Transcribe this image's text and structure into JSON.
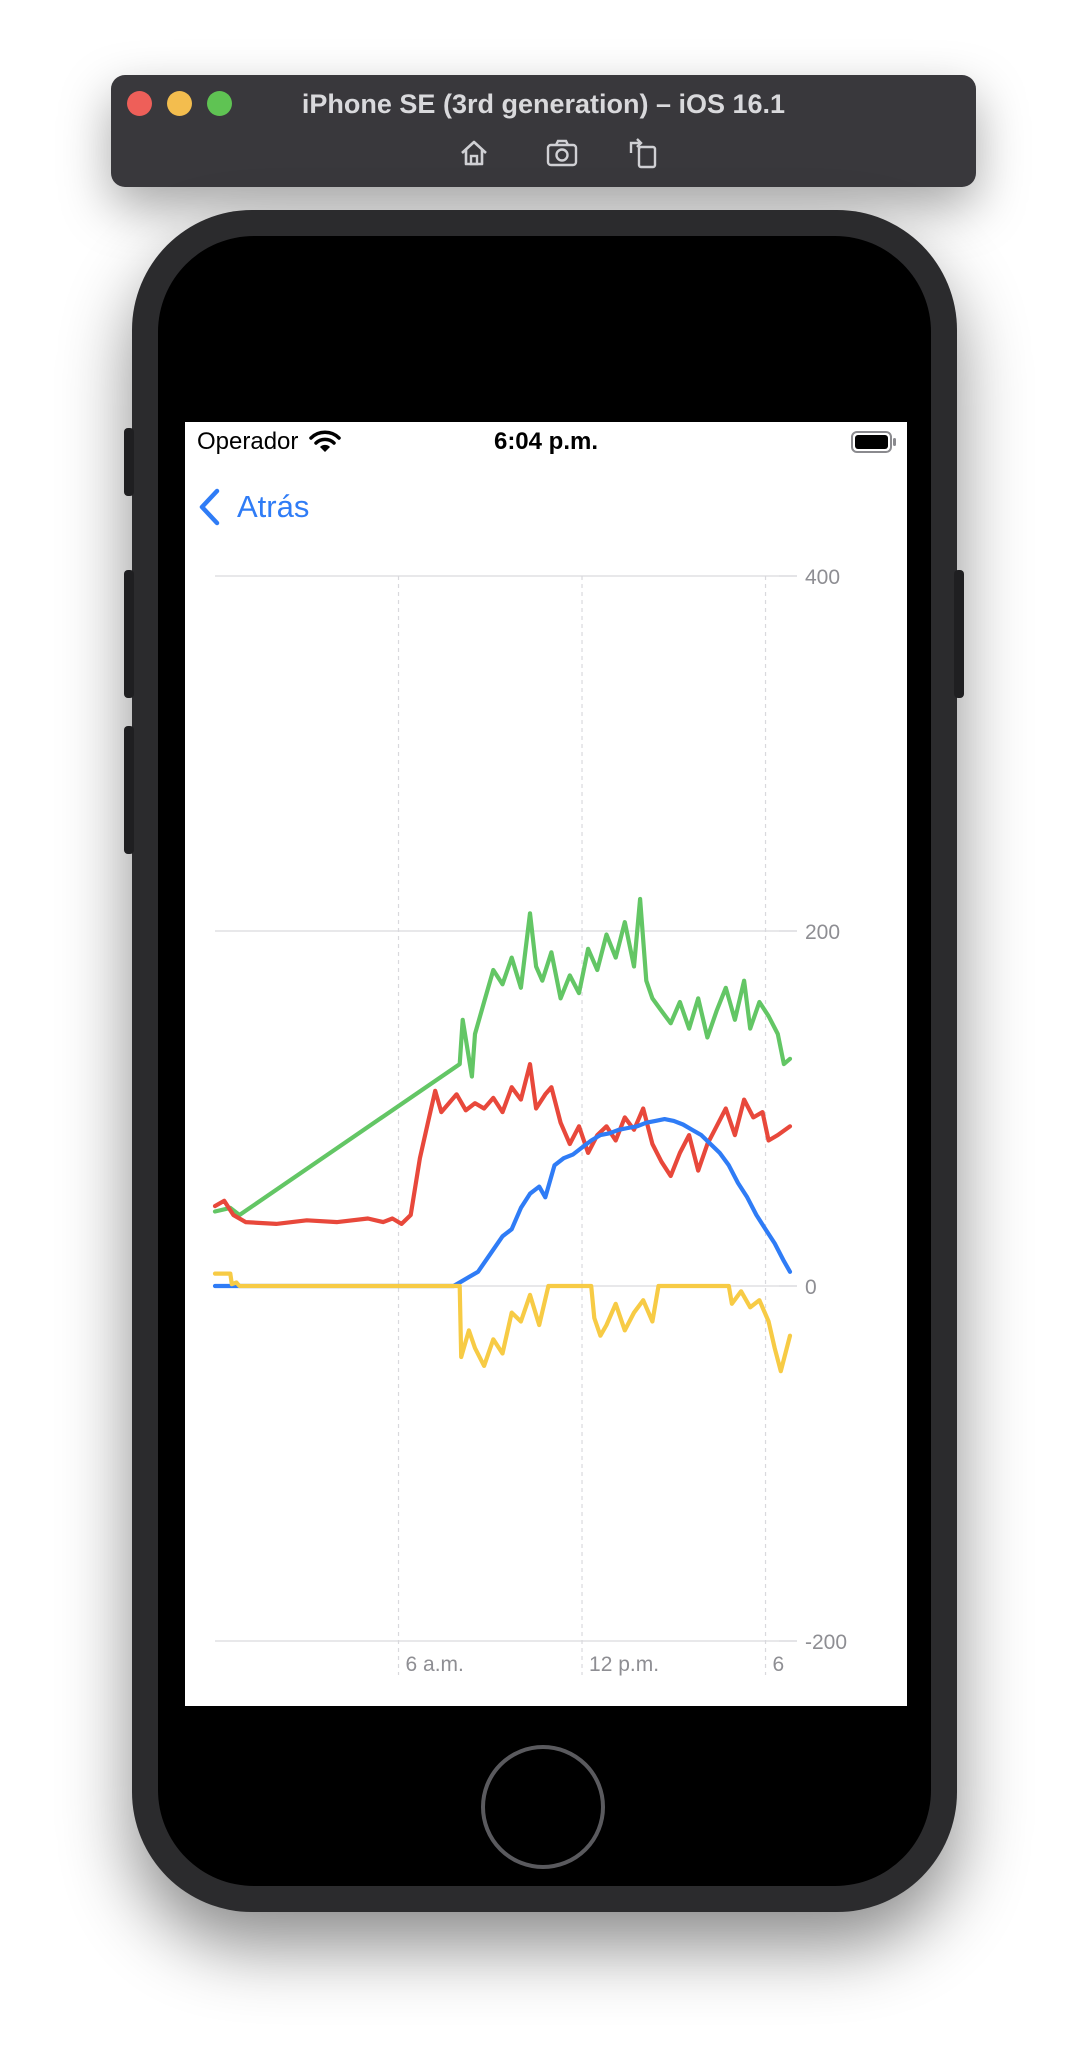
{
  "simulator": {
    "title": "iPhone SE (3rd generation) – iOS 16.1",
    "tools": [
      {
        "name": "home-icon"
      },
      {
        "name": "screenshot-icon"
      },
      {
        "name": "rotate-icon"
      }
    ]
  },
  "status_bar": {
    "carrier": "Operador",
    "time": "6:04 p.m.",
    "wifi_icon": "wifi-icon",
    "battery_icon": "battery-icon"
  },
  "nav": {
    "back_label": "Atrás",
    "back_icon": "chevron-left-icon",
    "accent_color": "#2f7cf6"
  },
  "chart_data": {
    "type": "line",
    "title": "",
    "xlabel": "",
    "ylabel": "",
    "x_unit": "hour of day",
    "xlim": [
      0,
      18.8
    ],
    "ylim": [
      -200,
      400
    ],
    "y_ticks": [
      400,
      200,
      0,
      -200
    ],
    "y_tick_labels": [
      "400",
      "200",
      "0",
      "-200"
    ],
    "x_ticks": [
      6,
      12,
      18
    ],
    "x_tick_labels": [
      "6 a.m.",
      "12 p.m.",
      "6"
    ],
    "y_axis_position": "right",
    "grid": true,
    "legend": "none",
    "series": [
      {
        "color": "#63c665",
        "x": [
          0,
          0.5,
          0.8,
          8.0,
          8.1,
          8.4,
          8.5,
          8.8,
          9.1,
          9.4,
          9.7,
          10.0,
          10.3,
          10.5,
          10.7,
          11.0,
          11.3,
          11.6,
          11.9,
          12.2,
          12.5,
          12.8,
          13.1,
          13.4,
          13.7,
          13.9,
          14.1,
          14.3,
          14.6,
          14.9,
          15.2,
          15.5,
          15.8,
          16.1,
          16.4,
          16.7,
          17.0,
          17.3,
          17.5,
          17.8,
          18.1,
          18.4,
          18.6,
          18.8
        ],
        "y": [
          42,
          44,
          40,
          125,
          150,
          118,
          142,
          160,
          178,
          170,
          185,
          168,
          210,
          180,
          172,
          188,
          162,
          175,
          165,
          190,
          178,
          198,
          185,
          205,
          180,
          218,
          172,
          162,
          155,
          148,
          160,
          145,
          162,
          140,
          155,
          168,
          150,
          172,
          145,
          160,
          152,
          142,
          125,
          128
        ]
      },
      {
        "color": "#e8483b",
        "x": [
          0,
          0.3,
          0.6,
          1.0,
          2.0,
          3.0,
          4.0,
          5.0,
          5.5,
          5.8,
          6.1,
          6.4,
          6.7,
          7.0,
          7.2,
          7.4,
          7.6,
          7.9,
          8.2,
          8.5,
          8.8,
          9.1,
          9.4,
          9.7,
          10.0,
          10.3,
          10.5,
          10.8,
          11.0,
          11.3,
          11.6,
          11.9,
          12.2,
          12.5,
          12.8,
          13.1,
          13.4,
          13.7,
          14.0,
          14.3,
          14.6,
          14.9,
          15.2,
          15.5,
          15.8,
          16.1,
          16.4,
          16.7,
          17.0,
          17.3,
          17.6,
          17.9,
          18.1,
          18.4,
          18.8
        ],
        "y": [
          45,
          48,
          40,
          36,
          35,
          37,
          36,
          38,
          36,
          38,
          35,
          40,
          72,
          95,
          110,
          98,
          102,
          108,
          99,
          103,
          100,
          106,
          98,
          112,
          105,
          125,
          100,
          108,
          112,
          92,
          80,
          90,
          75,
          85,
          90,
          82,
          95,
          88,
          100,
          80,
          70,
          62,
          75,
          85,
          65,
          80,
          90,
          100,
          85,
          105,
          95,
          98,
          82,
          85,
          90
        ]
      },
      {
        "color": "#2f7cf6",
        "x": [
          0,
          0.5,
          0.6,
          7.8,
          8.0,
          8.3,
          8.6,
          9.0,
          9.4,
          9.7,
          10.0,
          10.3,
          10.6,
          10.8,
          11.1,
          11.4,
          11.7,
          12.0,
          12.3,
          12.6,
          12.9,
          13.2,
          13.5,
          13.8,
          14.1,
          14.4,
          14.7,
          15.0,
          15.3,
          15.6,
          15.9,
          16.2,
          16.5,
          16.8,
          17.1,
          17.4,
          17.7,
          18.0,
          18.3,
          18.6,
          18.8
        ],
        "y": [
          0,
          0,
          0,
          0,
          2,
          5,
          8,
          18,
          28,
          32,
          44,
          52,
          56,
          50,
          68,
          72,
          74,
          78,
          82,
          85,
          86,
          88,
          89,
          90,
          92,
          93,
          94,
          93,
          91,
          88,
          85,
          80,
          75,
          68,
          58,
          50,
          40,
          32,
          24,
          14,
          8
        ]
      },
      {
        "color": "#f7cb45",
        "x": [
          0,
          0.5,
          0.55,
          0.7,
          0.8,
          8.0,
          8.05,
          8.3,
          8.5,
          8.8,
          9.1,
          9.4,
          9.7,
          10.0,
          10.3,
          10.6,
          10.9,
          11.0,
          11.3,
          11.6,
          11.9,
          12.3,
          12.4,
          12.6,
          12.8,
          13.1,
          13.4,
          13.7,
          14.0,
          14.3,
          14.5,
          14.7,
          16.8,
          16.9,
          17.2,
          17.5,
          17.8,
          18.1,
          18.3,
          18.5,
          18.8
        ],
        "y": [
          7,
          7,
          1,
          2,
          0,
          0,
          -40,
          -25,
          -35,
          -45,
          -30,
          -38,
          -15,
          -20,
          -5,
          -22,
          0,
          0,
          0,
          0,
          0,
          0,
          -18,
          -28,
          -22,
          -10,
          -25,
          -15,
          -8,
          -20,
          0,
          0,
          0,
          -10,
          -3,
          -12,
          -8,
          -20,
          -35,
          -48,
          -28
        ]
      }
    ]
  }
}
